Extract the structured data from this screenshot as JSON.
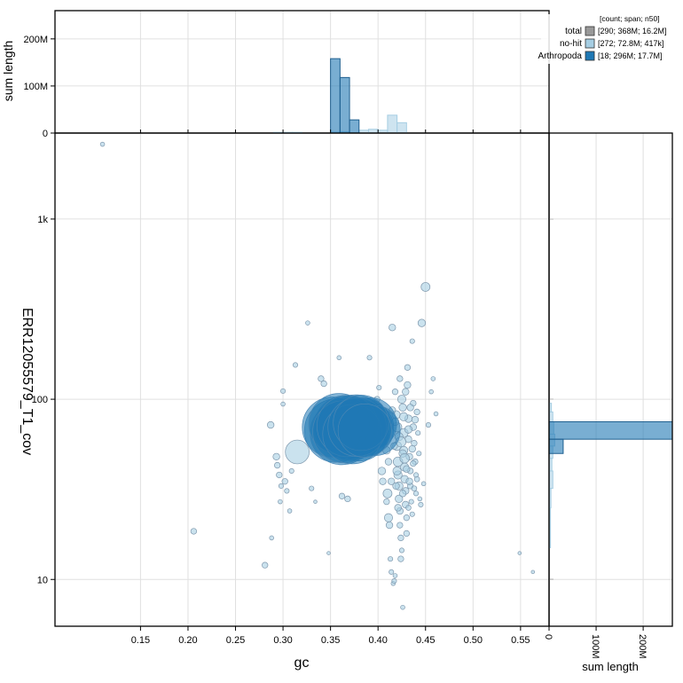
{
  "chart_data": {
    "type": "scatter",
    "xlabel": "gc",
    "ylabel": "ERR12055579_T1_cov",
    "top_ylabel": "sum length",
    "right_xlabel": "sum length",
    "xlim": [
      0.06,
      0.58
    ],
    "ylim": [
      5.5,
      3000
    ],
    "yscale": "log",
    "x_ticks": [
      "0.15",
      "0.20",
      "0.25",
      "0.30",
      "0.35",
      "0.40",
      "0.45",
      "0.50",
      "0.55"
    ],
    "y_ticks": [
      "10",
      "100",
      "1k"
    ],
    "top_y_ticks": [
      "0",
      "100M",
      "200M"
    ],
    "right_x_ticks": [
      "0",
      "100M",
      "200M"
    ],
    "legend": {
      "header": "[count; span; n50]",
      "entries": [
        {
          "name": "total",
          "stats": "[290; 368M; 16.2M]",
          "color": "#999999"
        },
        {
          "name": "no-hit",
          "stats": "[272; 72.8M; 417k]",
          "color": "#a6cee3"
        },
        {
          "name": "Arthropoda",
          "stats": "[18; 296M; 17.7M]",
          "color": "#1f78b4"
        }
      ]
    },
    "colors": {
      "nohit": "#a6cee3",
      "arthropoda": "#1f78b4",
      "stroke": "#7f98ad"
    },
    "points_nohit": [
      [
        0.11,
        2600,
        0.08
      ],
      [
        0.206,
        18.5,
        0.15
      ],
      [
        0.281,
        12,
        0.15
      ],
      [
        0.288,
        17,
        0.08
      ],
      [
        0.287,
        72,
        0.2
      ],
      [
        0.293,
        48,
        0.2
      ],
      [
        0.294,
        43,
        0.15
      ],
      [
        0.296,
        38,
        0.15
      ],
      [
        0.297,
        27,
        0.08
      ],
      [
        0.298,
        33,
        0.1
      ],
      [
        0.3,
        111,
        0.1
      ],
      [
        0.3,
        94,
        0.08
      ],
      [
        0.302,
        35,
        0.15
      ],
      [
        0.304,
        31,
        0.1
      ],
      [
        0.307,
        24,
        0.08
      ],
      [
        0.309,
        40,
        0.1
      ],
      [
        0.313,
        155,
        0.1
      ],
      [
        0.315,
        51,
        2.5
      ],
      [
        0.326,
        265,
        0.08
      ],
      [
        0.33,
        32,
        0.1
      ],
      [
        0.334,
        27,
        0.05
      ],
      [
        0.34,
        130,
        0.15
      ],
      [
        0.343,
        122,
        0.15
      ],
      [
        0.348,
        14,
        0.05
      ],
      [
        0.355,
        82,
        0.1
      ],
      [
        0.359,
        170,
        0.08
      ],
      [
        0.362,
        29,
        0.15
      ],
      [
        0.368,
        28,
        0.15
      ],
      [
        0.383,
        60,
        0.15
      ],
      [
        0.391,
        170,
        0.1
      ],
      [
        0.395,
        95,
        0.1
      ],
      [
        0.399,
        100,
        0.15
      ],
      [
        0.401,
        116,
        0.1
      ],
      [
        0.402,
        92,
        0.08
      ],
      [
        0.403,
        85,
        0.15
      ],
      [
        0.404,
        40,
        0.25
      ],
      [
        0.405,
        35,
        0.2
      ],
      [
        0.406,
        75,
        0.3
      ],
      [
        0.408,
        62,
        0.2
      ],
      [
        0.409,
        27,
        0.15
      ],
      [
        0.41,
        30,
        0.35
      ],
      [
        0.411,
        22,
        0.3
      ],
      [
        0.412,
        20,
        0.2
      ],
      [
        0.413,
        13,
        0.1
      ],
      [
        0.414,
        11,
        0.1
      ],
      [
        0.415,
        250,
        0.2
      ],
      [
        0.416,
        9.5,
        0.08
      ],
      [
        0.417,
        9.8,
        0.1
      ],
      [
        0.418,
        10.5,
        0.08
      ],
      [
        0.418,
        110,
        0.15
      ],
      [
        0.419,
        82,
        0.3
      ],
      [
        0.42,
        70,
        0.4
      ],
      [
        0.42,
        55,
        0.35
      ],
      [
        0.421,
        45,
        0.4
      ],
      [
        0.421,
        38,
        0.3
      ],
      [
        0.422,
        33,
        0.3
      ],
      [
        0.422,
        28,
        0.25
      ],
      [
        0.423,
        24,
        0.2
      ],
      [
        0.423,
        20,
        0.15
      ],
      [
        0.424,
        17,
        0.15
      ],
      [
        0.424,
        13,
        0.15
      ],
      [
        0.425,
        14.5,
        0.1
      ],
      [
        0.425,
        100,
        0.3
      ],
      [
        0.426,
        90,
        0.25
      ],
      [
        0.426,
        7,
        0.08
      ],
      [
        0.427,
        65,
        0.35
      ],
      [
        0.427,
        52,
        0.3
      ],
      [
        0.428,
        42,
        0.3
      ],
      [
        0.428,
        36,
        0.25
      ],
      [
        0.429,
        31,
        0.2
      ],
      [
        0.429,
        26,
        0.2
      ],
      [
        0.43,
        22,
        0.15
      ],
      [
        0.43,
        18,
        0.15
      ],
      [
        0.431,
        120,
        0.2
      ],
      [
        0.431,
        150,
        0.15
      ],
      [
        0.432,
        78,
        0.25
      ],
      [
        0.432,
        60,
        0.2
      ],
      [
        0.433,
        48,
        0.2
      ],
      [
        0.434,
        40,
        0.15
      ],
      [
        0.434,
        33,
        0.15
      ],
      [
        0.435,
        27,
        0.1
      ],
      [
        0.436,
        23,
        0.1
      ],
      [
        0.436,
        210,
        0.1
      ],
      [
        0.437,
        95,
        0.15
      ],
      [
        0.437,
        70,
        0.2
      ],
      [
        0.438,
        57,
        0.15
      ],
      [
        0.439,
        45,
        0.15
      ],
      [
        0.44,
        38,
        0.1
      ],
      [
        0.44,
        30,
        0.1
      ],
      [
        0.441,
        85,
        0.15
      ],
      [
        0.442,
        65,
        0.1
      ],
      [
        0.443,
        50,
        0.1
      ],
      [
        0.444,
        28,
        0.08
      ],
      [
        0.445,
        26,
        0.1
      ],
      [
        0.446,
        265,
        0.25
      ],
      [
        0.448,
        34,
        0.08
      ],
      [
        0.45,
        420,
        0.35
      ],
      [
        0.453,
        72,
        0.1
      ],
      [
        0.456,
        110,
        0.08
      ],
      [
        0.458,
        130,
        0.08
      ],
      [
        0.461,
        83,
        0.08
      ],
      [
        0.549,
        14,
        0.05
      ],
      [
        0.563,
        11,
        0.05
      ],
      [
        0.415,
        87,
        0.2
      ],
      [
        0.418,
        75,
        0.25
      ],
      [
        0.422,
        62,
        0.3
      ],
      [
        0.426,
        50,
        0.25
      ],
      [
        0.43,
        41,
        0.2
      ],
      [
        0.433,
        35,
        0.2
      ],
      [
        0.436,
        53,
        0.2
      ],
      [
        0.439,
        77,
        0.2
      ],
      [
        0.424,
        58,
        0.45
      ],
      [
        0.428,
        47,
        0.4
      ],
      [
        0.432,
        68,
        0.25
      ],
      [
        0.42,
        40,
        0.3
      ],
      [
        0.437,
        44,
        0.15
      ],
      [
        0.441,
        36,
        0.12
      ],
      [
        0.417,
        55,
        0.2
      ],
      [
        0.411,
        45,
        0.2
      ],
      [
        0.409,
        52,
        0.25
      ],
      [
        0.427,
        80,
        0.3
      ],
      [
        0.434,
        90,
        0.2
      ],
      [
        0.429,
        110,
        0.2
      ],
      [
        0.423,
        130,
        0.15
      ],
      [
        0.421,
        25,
        0.2
      ],
      [
        0.426,
        30,
        0.2
      ],
      [
        0.432,
        25,
        0.12
      ],
      [
        0.438,
        32,
        0.12
      ],
      [
        0.414,
        35,
        0.2
      ],
      [
        0.419,
        33,
        0.2
      ]
    ],
    "points_arthropoda": [
      [
        0.356,
        67,
        17.7
      ],
      [
        0.362,
        65,
        17.7
      ],
      [
        0.366,
        70,
        17.7
      ],
      [
        0.371,
        68,
        17
      ],
      [
        0.376,
        72,
        16
      ],
      [
        0.38,
        66,
        15
      ],
      [
        0.384,
        71,
        14
      ],
      [
        0.388,
        69,
        13
      ],
      [
        0.392,
        73,
        12
      ],
      [
        0.397,
        67,
        11
      ],
      [
        0.352,
        70,
        16
      ],
      [
        0.359,
        73,
        16.2
      ],
      [
        0.364,
        66,
        17
      ],
      [
        0.368,
        71,
        16.5
      ],
      [
        0.373,
        64,
        15.5
      ],
      [
        0.378,
        70,
        15
      ],
      [
        0.382,
        74,
        13.5
      ],
      [
        0.386,
        67,
        12.5
      ]
    ],
    "hist_top": {
      "bin_width": 0.01,
      "arthropoda": [
        [
          0.35,
          158
        ],
        [
          0.36,
          118
        ],
        [
          0.37,
          28
        ]
      ],
      "nohit": [
        [
          0.29,
          1.5
        ],
        [
          0.3,
          1.5
        ],
        [
          0.31,
          1.5
        ],
        [
          0.35,
          2
        ],
        [
          0.36,
          3
        ],
        [
          0.38,
          6
        ],
        [
          0.39,
          8
        ],
        [
          0.4,
          6
        ],
        [
          0.41,
          38
        ],
        [
          0.42,
          22
        ]
      ]
    },
    "hist_right": {
      "arthropoda": [
        [
          60,
          75,
          262
        ],
        [
          50,
          60,
          30
        ]
      ],
      "nohit": [
        [
          85,
          95,
          5
        ],
        [
          75,
          85,
          8
        ],
        [
          64,
          75,
          10
        ],
        [
          55,
          64,
          12
        ],
        [
          47,
          55,
          8
        ],
        [
          40,
          47,
          6
        ],
        [
          32,
          40,
          8
        ],
        [
          25,
          32,
          4
        ],
        [
          15,
          25,
          3
        ]
      ]
    }
  }
}
